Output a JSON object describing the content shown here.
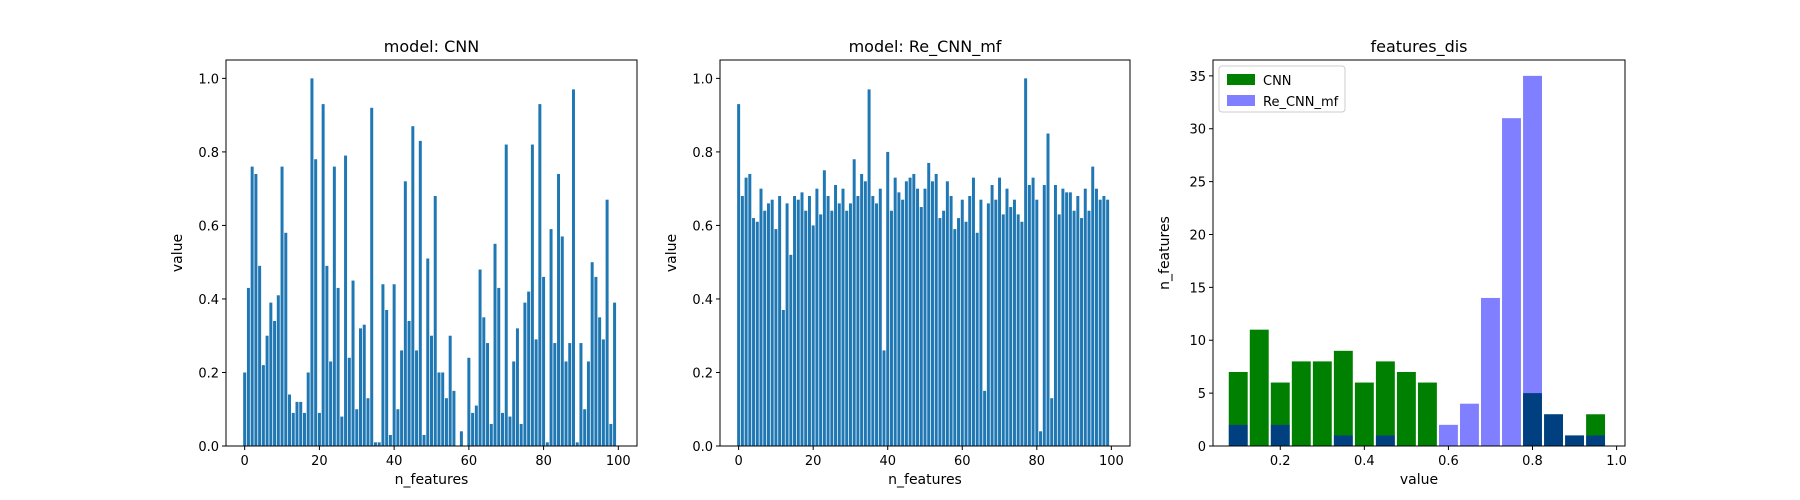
{
  "chart_data": [
    {
      "type": "bar",
      "title": "model: CNN",
      "xlabel": "n_features",
      "ylabel": "value",
      "xlim": [
        -5,
        105
      ],
      "ylim": [
        0,
        1.05
      ],
      "xticks": [
        0,
        20,
        40,
        60,
        80,
        100
      ],
      "yticks": [
        0.0,
        0.2,
        0.4,
        0.6,
        0.8,
        1.0
      ],
      "grid": false,
      "color": "#1f77b4",
      "x": [
        0,
        1,
        2,
        3,
        4,
        5,
        6,
        7,
        8,
        9,
        10,
        11,
        12,
        13,
        14,
        15,
        16,
        17,
        18,
        19,
        20,
        21,
        22,
        23,
        24,
        25,
        26,
        27,
        28,
        29,
        30,
        31,
        32,
        33,
        34,
        35,
        36,
        37,
        38,
        39,
        40,
        41,
        42,
        43,
        44,
        45,
        46,
        47,
        48,
        49,
        50,
        51,
        52,
        53,
        54,
        55,
        56,
        57,
        58,
        59,
        60,
        61,
        62,
        63,
        64,
        65,
        66,
        67,
        68,
        69,
        70,
        71,
        72,
        73,
        74,
        75,
        76,
        77,
        78,
        79,
        80,
        81,
        82,
        83,
        84,
        85,
        86,
        87,
        88,
        89,
        90,
        91,
        92,
        93,
        94,
        95,
        96,
        97,
        98,
        99
      ],
      "values": [
        0.2,
        0.43,
        0.76,
        0.74,
        0.49,
        0.22,
        0.3,
        0.39,
        0.34,
        0.41,
        0.76,
        0.58,
        0.14,
        0.09,
        0.12,
        0.12,
        0.09,
        0.2,
        1.0,
        0.78,
        0.09,
        0.93,
        0.49,
        0.23,
        0.76,
        0.43,
        0.08,
        0.79,
        0.24,
        0.45,
        0.1,
        0.32,
        0.33,
        0.13,
        0.92,
        0.01,
        0.01,
        0.44,
        0.37,
        0.03,
        0.44,
        0.1,
        0.26,
        0.72,
        0.34,
        0.87,
        0.26,
        0.83,
        0.03,
        0.51,
        0.3,
        0.68,
        0.2,
        0.2,
        0.13,
        0.3,
        0.15,
        0.0,
        0.04,
        0.0,
        0.24,
        0.09,
        0.11,
        0.48,
        0.35,
        0.28,
        0.06,
        0.55,
        0.43,
        0.09,
        0.82,
        0.08,
        0.23,
        0.32,
        0.06,
        0.39,
        0.42,
        0.82,
        0.29,
        0.93,
        0.46,
        0.01,
        0.59,
        0.28,
        0.74,
        0.57,
        0.23,
        0.28,
        0.97,
        0.01,
        0.28,
        0.1,
        0.23,
        0.5,
        0.46,
        0.35,
        0.29,
        0.67,
        0.06,
        0.39
      ]
    },
    {
      "type": "bar",
      "title": "model: Re_CNN_mf",
      "xlabel": "n_features",
      "ylabel": "value",
      "xlim": [
        -5,
        105
      ],
      "ylim": [
        0,
        1.05
      ],
      "xticks": [
        0,
        20,
        40,
        60,
        80,
        100
      ],
      "yticks": [
        0.0,
        0.2,
        0.4,
        0.6,
        0.8,
        1.0
      ],
      "grid": false,
      "color": "#1f77b4",
      "x": [
        0,
        1,
        2,
        3,
        4,
        5,
        6,
        7,
        8,
        9,
        10,
        11,
        12,
        13,
        14,
        15,
        16,
        17,
        18,
        19,
        20,
        21,
        22,
        23,
        24,
        25,
        26,
        27,
        28,
        29,
        30,
        31,
        32,
        33,
        34,
        35,
        36,
        37,
        38,
        39,
        40,
        41,
        42,
        43,
        44,
        45,
        46,
        47,
        48,
        49,
        50,
        51,
        52,
        53,
        54,
        55,
        56,
        57,
        58,
        59,
        60,
        61,
        62,
        63,
        64,
        65,
        66,
        67,
        68,
        69,
        70,
        71,
        72,
        73,
        74,
        75,
        76,
        77,
        78,
        79,
        80,
        81,
        82,
        83,
        84,
        85,
        86,
        87,
        88,
        89,
        90,
        91,
        92,
        93,
        94,
        95,
        96,
        97,
        98,
        99
      ],
      "values": [
        0.93,
        0.68,
        0.73,
        0.74,
        0.62,
        0.61,
        0.7,
        0.64,
        0.66,
        0.67,
        0.59,
        0.68,
        0.37,
        0.66,
        0.52,
        0.68,
        0.67,
        0.69,
        0.64,
        0.68,
        0.6,
        0.7,
        0.63,
        0.75,
        0.68,
        0.64,
        0.71,
        0.66,
        0.7,
        0.64,
        0.66,
        0.78,
        0.68,
        0.74,
        0.72,
        0.97,
        0.68,
        0.66,
        0.7,
        0.26,
        0.8,
        0.64,
        0.73,
        0.69,
        0.67,
        0.72,
        0.73,
        0.74,
        0.7,
        0.65,
        0.7,
        0.77,
        0.72,
        0.74,
        0.62,
        0.64,
        0.72,
        0.68,
        0.59,
        0.62,
        0.67,
        0.61,
        0.68,
        0.73,
        0.58,
        0.67,
        0.15,
        0.66,
        0.71,
        0.67,
        0.73,
        0.63,
        0.7,
        0.65,
        0.67,
        0.63,
        0.61,
        1.0,
        0.71,
        0.73,
        0.67,
        0.04,
        0.71,
        0.85,
        0.13,
        0.71,
        0.63,
        0.7,
        0.69,
        0.69,
        0.64,
        0.68,
        0.62,
        0.7,
        0.64,
        0.76,
        0.7,
        0.67,
        0.68,
        0.67
      ]
    },
    {
      "type": "bar",
      "title": "features_dis",
      "xlabel": "value",
      "ylabel": "n_features",
      "xlim": [
        0.04,
        1.02
      ],
      "ylim": [
        0,
        36.5
      ],
      "xticks": [
        0.2,
        0.4,
        0.6,
        0.8,
        1.0
      ],
      "yticks": [
        0,
        5,
        10,
        15,
        20,
        25,
        30,
        35
      ],
      "grid": false,
      "legend_position": "top-left",
      "bin_width": 0.05,
      "bar_width": 0.045,
      "categories": [
        0.1,
        0.15,
        0.2,
        0.25,
        0.3,
        0.35,
        0.4,
        0.45,
        0.5,
        0.55,
        0.6,
        0.65,
        0.7,
        0.75,
        0.8,
        0.85,
        0.9,
        0.95
      ],
      "series": [
        {
          "name": "CNN",
          "color": "#008000",
          "opacity": 1.0,
          "values": [
            7,
            11,
            6,
            8,
            8,
            9,
            6,
            8,
            7,
            6,
            0,
            0,
            0,
            0,
            5,
            3,
            1,
            3
          ]
        },
        {
          "name": "Re_CNN_mf",
          "color": "#0000ff",
          "opacity": 0.5,
          "values": [
            2,
            0,
            2,
            0,
            0,
            1,
            0,
            1,
            0,
            0,
            2,
            4,
            14,
            31,
            35,
            3,
            1,
            1
          ]
        }
      ]
    }
  ]
}
